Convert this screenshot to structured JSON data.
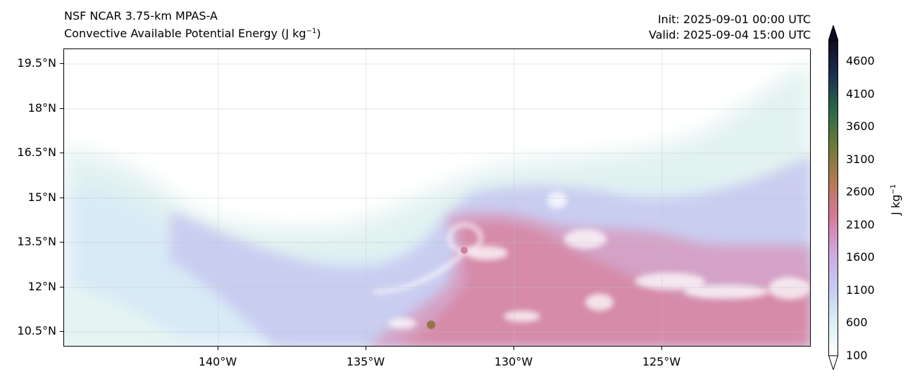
{
  "header": {
    "model": "NSF NCAR 3.75-km MPAS-A",
    "field": "Convective Available Potential Energy (J kg",
    "field_exp": "−1",
    "field_close": ")",
    "init": "Init: 2025-09-01 00:00 UTC",
    "valid": "Valid: 2025-09-04 15:00 UTC"
  },
  "map": {
    "lat_labels": [
      "19.5°N",
      "18°N",
      "16.5°N",
      "15°N",
      "13.5°N",
      "12°N",
      "10.5°N"
    ],
    "lon_labels": [
      "140°W",
      "135°W",
      "130°W",
      "125°W"
    ],
    "gridlines": true
  },
  "colorbar": {
    "ticks": [
      "4600",
      "4100",
      "3600",
      "3100",
      "2600",
      "2100",
      "1600",
      "1100",
      "600",
      "100"
    ],
    "unit": "J kg",
    "unit_exp": "−1",
    "extend": "both",
    "colors": {
      "100": "#ffffff",
      "600": "#d8eef4",
      "1100": "#c6c8f2",
      "1600": "#cfa6dc",
      "2100": "#d87898",
      "2600": "#b47a52",
      "3100": "#6d7a36",
      "3600": "#2a6a48",
      "4100": "#1a3050",
      "4600": "#120a22"
    }
  }
}
